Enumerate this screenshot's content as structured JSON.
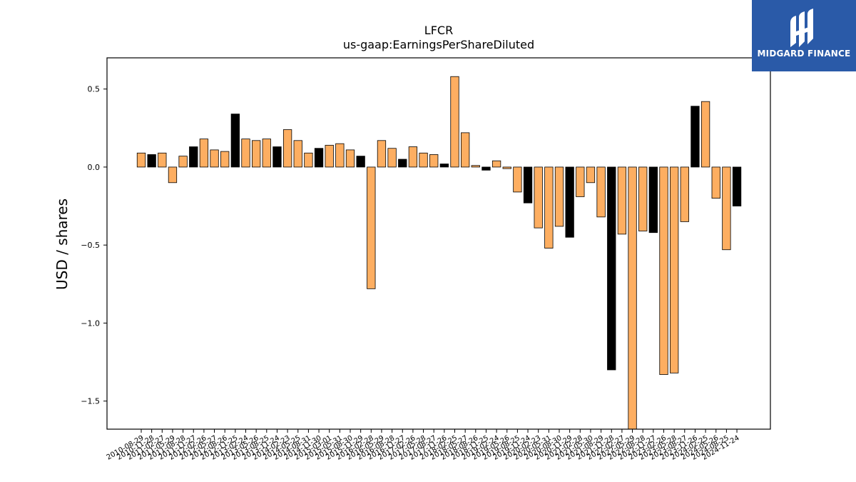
{
  "brand": {
    "name": "MIDGARD FINANCE",
    "color": "#2a5aa8"
  },
  "chart_data": {
    "type": "bar",
    "title": "LFCR",
    "subtitle": "us-gaap:EarningsPerShareDiluted",
    "ylabel": "USD / shares",
    "xlabel": "",
    "ylim": [
      -1.68,
      0.7
    ],
    "yticks": [
      0.5,
      0.0,
      -0.5,
      -1.0,
      -1.5
    ],
    "ytick_labels": [
      "0.5",
      "0.0",
      "−0.5",
      "−1.0",
      "−1.5"
    ],
    "grid": false,
    "colors": {
      "orange": "#fdae61",
      "black": "#000000"
    },
    "categories": [
      "2010-08-29",
      "2010-11-28",
      "2011-02-27",
      "2011-05-29",
      "2011-08-28",
      "2011-11-27",
      "2012-02-26",
      "2012-05-27",
      "2012-08-26",
      "2012-11-25",
      "2013-02-24",
      "2013-05-26",
      "2013-08-25",
      "2013-11-24",
      "2014-02-23",
      "2014-05-25",
      "2014-08-31",
      "2014-11-30",
      "2015-03-01",
      "2015-05-31",
      "2015-08-30",
      "2015-11-29",
      "2016-02-28",
      "2016-05-29",
      "2016-08-28",
      "2016-11-27",
      "2017-02-26",
      "2017-05-28",
      "2017-08-27",
      "2017-11-26",
      "2018-02-25",
      "2018-05-27",
      "2018-08-26",
      "2018-11-25",
      "2019-02-24",
      "2019-05-26",
      "2019-08-25",
      "2019-11-24",
      "2020-02-23",
      "2020-05-31",
      "2020-08-30",
      "2020-11-29",
      "2021-02-28",
      "2021-05-30",
      "2021-08-29",
      "2021-11-28",
      "2022-02-27",
      "2022-05-29",
      "2022-08-28",
      "2022-11-27",
      "2023-02-26",
      "2023-05-28",
      "2023-08-27",
      "2023-11-26",
      "2024-02-25",
      "2024-05-26",
      "2024-08-25",
      "2024-11-24"
    ],
    "visible_tick_labels": [
      "2010-08-29",
      "2010-11-28",
      "2011-02-27",
      "2011-05-29",
      "2011-08-28",
      "2011-11-27",
      "2012-02-26",
      "2012-05-27",
      "2012-08-26",
      "2012-11-25",
      "2013-02-24",
      "2013-05-26",
      "2013-08-25",
      "2013-11-24",
      "2014-02-23",
      "2014-05-25",
      "2014-08-31",
      "2014-11-30",
      "2015-03-01",
      "2015-05-31",
      "2015-08-30",
      "2015-11-29",
      "2016-02-28",
      "2016-05-29",
      "2016-08-28",
      "2016-11-27",
      "2017-02-26",
      "2017-05-28",
      "2017-08-27",
      "2017-11-26",
      "2018-02-25",
      "2018-05-27",
      "2018-08-26",
      "2018-11-25",
      "2019-02-24",
      "2019-05-26",
      "2019-08-25",
      "2019-11-24",
      "2020-02-23",
      "2020-05-31",
      "2020-08-30",
      "2020-11-29",
      "2021-02-28",
      "2021-05-30",
      "2021-08-29",
      "2021-11-28",
      "2022-02-27",
      "2022-05-29",
      "2022-08-28",
      "2022-11-27",
      "2023-02-26",
      "2023-05-28",
      "2023-08-27",
      "2023-11-26",
      "2024-02-25",
      "2024-05-26",
      "2024-08-25",
      "2024-11-24"
    ],
    "values": [
      0.09,
      0.08,
      0.09,
      -0.1,
      0.07,
      0.13,
      0.18,
      0.11,
      0.1,
      0.34,
      0.18,
      0.17,
      0.18,
      0.13,
      0.24,
      0.17,
      0.09,
      0.12,
      0.14,
      0.15,
      0.11,
      0.07,
      -0.78,
      0.17,
      0.12,
      0.05,
      0.13,
      0.09,
      0.08,
      0.02,
      0.58,
      0.22,
      0.01,
      -0.02,
      0.04,
      -0.01,
      -0.16,
      -0.23,
      -0.39,
      -0.52,
      -0.38,
      -0.45,
      -0.19,
      -0.1,
      -0.32,
      -1.3,
      -0.43,
      -1.68,
      -0.41,
      -0.42,
      -1.33,
      -1.32,
      -0.35,
      0.39,
      0.42,
      -0.2,
      -0.53,
      -0.25
    ],
    "bar_colors": [
      "orange",
      "black",
      "orange",
      "orange",
      "orange",
      "black",
      "orange",
      "orange",
      "orange",
      "black",
      "orange",
      "orange",
      "orange",
      "black",
      "orange",
      "orange",
      "orange",
      "black",
      "orange",
      "orange",
      "orange",
      "black",
      "orange",
      "orange",
      "orange",
      "black",
      "orange",
      "orange",
      "orange",
      "black",
      "orange",
      "orange",
      "orange",
      "black",
      "orange",
      "orange",
      "orange",
      "black",
      "orange",
      "orange",
      "orange",
      "black",
      "orange",
      "orange",
      "orange",
      "black",
      "orange",
      "orange",
      "orange",
      "black",
      "orange",
      "orange",
      "orange",
      "black",
      "orange",
      "orange",
      "orange",
      "black"
    ]
  }
}
